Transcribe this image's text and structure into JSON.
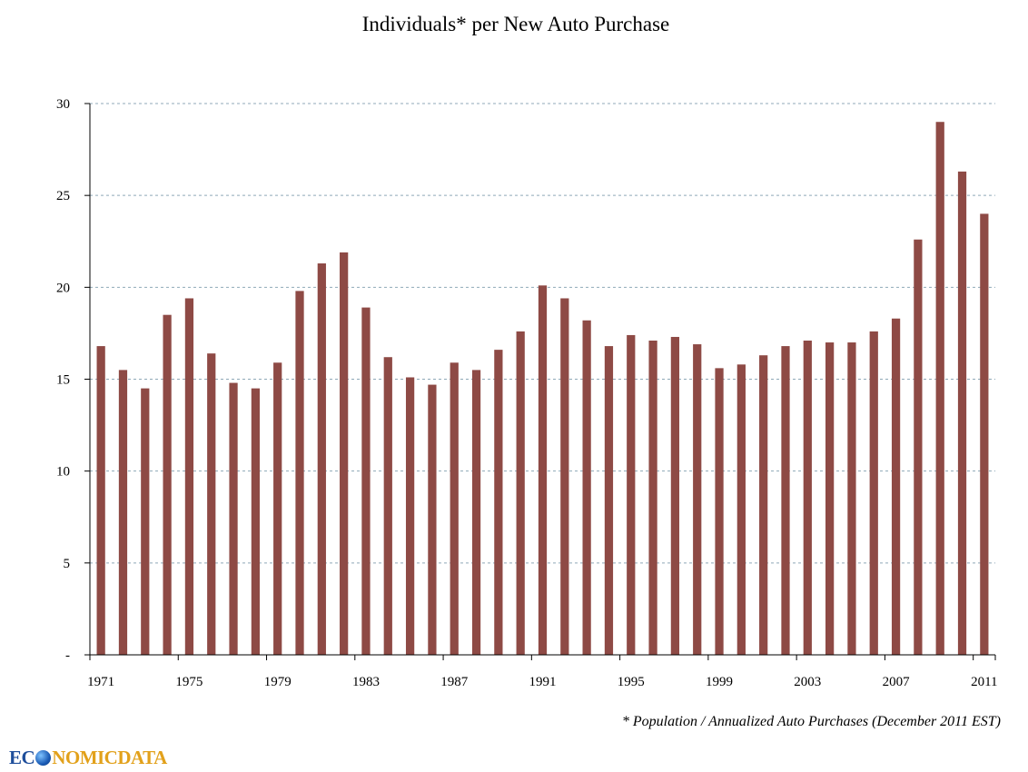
{
  "chart_data": {
    "type": "bar",
    "title": "Individuals* per New Auto Purchase",
    "xlabel": "",
    "ylabel": "",
    "ylim": [
      0,
      30
    ],
    "yticks": [
      "-",
      "5",
      "10",
      "15",
      "20",
      "25",
      "30"
    ],
    "ytick_values": [
      0,
      5,
      10,
      15,
      20,
      25,
      30
    ],
    "xtick_labels": [
      "1971",
      "1975",
      "1979",
      "1983",
      "1987",
      "1991",
      "1995",
      "1999",
      "2003",
      "2007",
      "2011"
    ],
    "categories": [
      1971,
      1972,
      1973,
      1974,
      1975,
      1976,
      1977,
      1978,
      1979,
      1980,
      1981,
      1982,
      1983,
      1984,
      1985,
      1986,
      1987,
      1988,
      1989,
      1990,
      1991,
      1992,
      1993,
      1994,
      1995,
      1996,
      1997,
      1998,
      1999,
      2000,
      2001,
      2002,
      2003,
      2004,
      2005,
      2006,
      2007,
      2008,
      2009,
      2010,
      2011
    ],
    "series": [
      {
        "values": [
          16.8,
          15.5,
          14.5,
          18.5,
          19.4,
          16.4,
          14.8,
          14.5,
          15.9,
          19.8,
          21.3,
          21.9,
          18.9,
          16.2,
          15.1,
          14.7,
          15.9,
          15.5,
          16.6,
          17.6,
          20.1,
          19.4,
          18.2,
          16.8,
          17.4,
          17.1,
          17.3,
          16.9,
          15.6,
          15.8,
          16.3,
          16.8,
          17.1,
          17.0,
          17.0,
          17.6,
          18.3,
          22.6,
          29.0,
          26.3,
          24.0
        ],
        "color": "#8e4a45"
      }
    ],
    "grid": true,
    "footnote": "* Population / Annualized Auto Purchases (December 2011 EST)"
  },
  "logo": {
    "part1": "EC",
    "part2": "NOMICDATA"
  }
}
